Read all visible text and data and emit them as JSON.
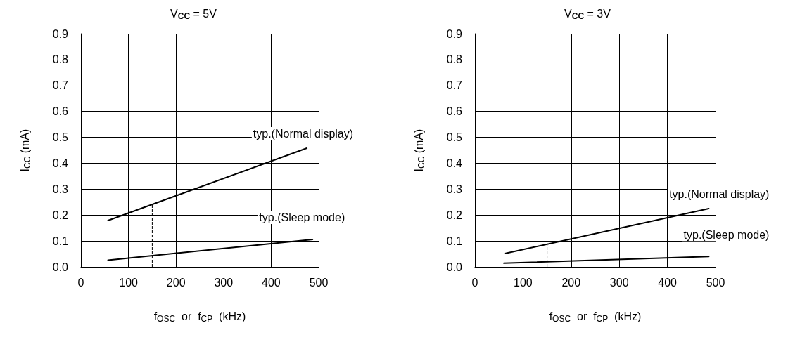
{
  "chart_data": [
    {
      "type": "line",
      "title": "V$_{CC}$ = 5V",
      "xlabel": "f$_{OSC}$  or  f$_{CP}$  (kHz)",
      "ylabel": "I$_{CC}$ (mA)",
      "series": [
        {
          "name": "typ.(Normal display)",
          "color": "#000000",
          "x": [
            57,
            475
          ],
          "values": [
            0.179,
            0.458
          ]
        },
        {
          "name": "typ.(Sleep mode)",
          "color": "#000000",
          "x": [
            57,
            487
          ],
          "values": [
            0.026,
            0.106
          ]
        }
      ],
      "ref_lines": [
        {
          "axis": "x",
          "value": 150,
          "label": null,
          "color": "#000000",
          "line_style": "dashed"
        }
      ],
      "xlim": [
        0,
        500
      ],
      "xticks": [
        0,
        100,
        200,
        300,
        400,
        500
      ],
      "ylim": [
        0,
        0.9
      ],
      "yticks": [
        {
          "value": 0,
          "label": "0.0"
        },
        0.1,
        0.2,
        0.3,
        0.4,
        0.5,
        0.6,
        0.7,
        0.8,
        0.9
      ],
      "grid": true,
      "marker": "none",
      "line_style": "solid"
    },
    {
      "type": "line",
      "title": "V$_{CC}$ = 3V",
      "xlabel": "f$_{OSC}$  or  f$_{CP}$  (kHz)",
      "ylabel": "I$_{CC}$ (mA)",
      "series": [
        {
          "name": "typ.(Normal display)",
          "color": "#000000",
          "x": [
            64,
            486
          ],
          "values": [
            0.052,
            0.225
          ]
        },
        {
          "name": "typ.(Sleep mode)",
          "color": "#000000",
          "x": [
            60,
            486
          ],
          "values": [
            0.014,
            0.04
          ]
        }
      ],
      "ref_lines": [
        {
          "axis": "x",
          "value": 150,
          "label": null,
          "color": "#000000",
          "line_style": "dashed"
        }
      ],
      "xlim": [
        0,
        500
      ],
      "xticks": [
        0,
        100,
        200,
        300,
        400,
        500
      ],
      "ylim": [
        0,
        0.9
      ],
      "yticks": [
        {
          "value": 0,
          "label": "0.0"
        },
        0.1,
        0.2,
        0.3,
        0.4,
        0.5,
        0.6,
        0.7,
        0.8,
        0.9
      ],
      "grid": true,
      "marker": "none",
      "line_style": "solid"
    }
  ]
}
